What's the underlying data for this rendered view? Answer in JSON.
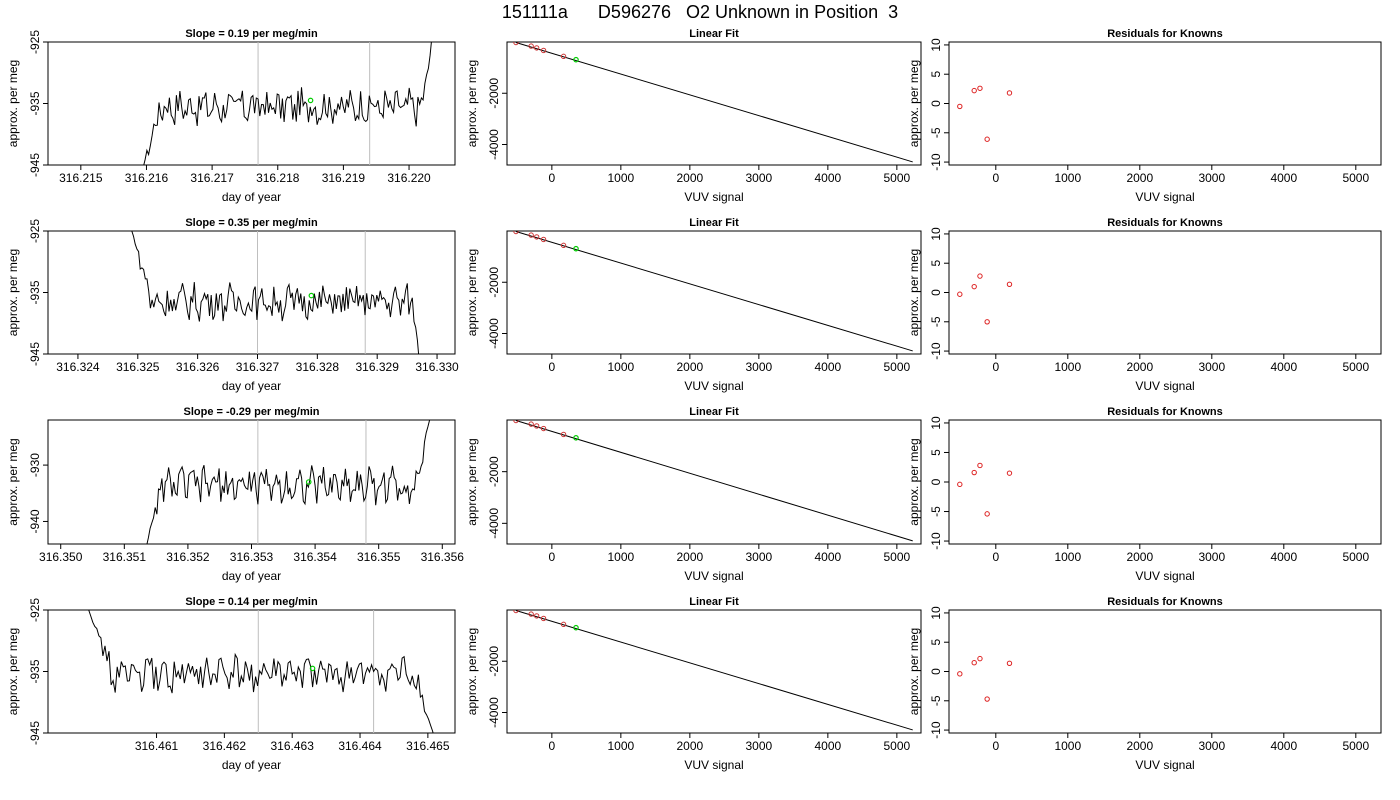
{
  "figure": {
    "title": "151111a      D596276   O2 Unknown in Position  3"
  },
  "colors": {
    "trace": "#000000",
    "marker_vline": "#bebebe",
    "unknown_point": "#00cc00",
    "known_point_fit": "#cc3333",
    "residual_point": "#dd2222",
    "fit_line": "#000000"
  },
  "chart_data": [
    {
      "type": "line",
      "panel": "time-series",
      "row": 1,
      "title": "Slope =  0.19  per meg/min",
      "xlabel": "day of year",
      "ylabel": "approx. per meg",
      "xlim": [
        316.2145,
        316.2207
      ],
      "ylim": [
        -945,
        -925
      ],
      "x_ticks": [
        "316.215",
        "316.216",
        "316.217",
        "316.218",
        "316.219",
        "316.220"
      ],
      "y_ticks": [
        "-945",
        "-935",
        "-925"
      ],
      "trace_start": 316.2159,
      "trace_end": 316.2204,
      "trace_level": -935.5,
      "rise_start": 316.2161,
      "fall_start": 316.2202,
      "fall_to": -921,
      "marker_lines": [
        316.2177,
        316.2194
      ],
      "unknown_point": {
        "x": 316.2185,
        "y": -934.5
      }
    },
    {
      "type": "scatter",
      "panel": "linear-fit",
      "row": 1,
      "title": "Linear Fit",
      "xlabel": "VUV signal",
      "ylabel": "approx. per meg",
      "xlim": [
        -650,
        5350
      ],
      "ylim": [
        -4800,
        0
      ],
      "x_ticks": [
        "0",
        "1000",
        "2000",
        "3000",
        "4000",
        "5000"
      ],
      "y_ticks": [
        "-2000",
        "-4000"
      ],
      "known_points": [
        [
          -520,
          -20
        ],
        [
          -300,
          -160
        ],
        [
          -220,
          -230
        ],
        [
          -120,
          -330
        ],
        [
          170,
          -560
        ]
      ],
      "unknown_point": [
        350,
        -690
      ],
      "fit_line": {
        "x0": -520,
        "y0": -20,
        "x1": 5230,
        "y1": -4680
      }
    },
    {
      "type": "scatter",
      "panel": "residuals",
      "row": 1,
      "title": "Residuals for Knowns",
      "xlabel": "VUV signal",
      "ylabel": "approx. per meg",
      "xlim": [
        -650,
        5350
      ],
      "ylim": [
        -10.5,
        10.5
      ],
      "x_ticks": [
        "0",
        "1000",
        "2000",
        "3000",
        "4000",
        "5000"
      ],
      "y_ticks": [
        "-10",
        "-5",
        "0",
        "5",
        "10"
      ],
      "points": [
        [
          -500,
          -0.5
        ],
        [
          -300,
          2.2
        ],
        [
          -220,
          2.6
        ],
        [
          -120,
          -6.1
        ],
        [
          190,
          1.8
        ]
      ]
    },
    {
      "type": "line",
      "panel": "time-series",
      "row": 2,
      "title": "Slope =  0.35  per meg/min",
      "xlabel": "day of year",
      "ylabel": "approx. per meg",
      "xlim": [
        316.3235,
        316.3303
      ],
      "ylim": [
        -945,
        -925
      ],
      "x_ticks": [
        "316.324",
        "316.325",
        "316.326",
        "316.327",
        "316.328",
        "316.329",
        "316.330"
      ],
      "y_ticks": [
        "-945",
        "-935",
        "-925"
      ],
      "trace_start": 316.3249,
      "trace_end": 316.3297,
      "trace_level": -936.5,
      "rise_start": 316.325,
      "rise_from": -925,
      "fall_start": 316.3296,
      "fall_to": -946,
      "marker_lines": [
        316.327,
        316.3288
      ],
      "unknown_point": {
        "x": 316.3279,
        "y": -935.5
      }
    },
    {
      "type": "scatter",
      "panel": "linear-fit",
      "row": 2,
      "title": "Linear Fit",
      "xlabel": "VUV signal",
      "ylabel": "approx. per meg",
      "xlim": [
        -650,
        5350
      ],
      "ylim": [
        -4800,
        0
      ],
      "x_ticks": [
        "0",
        "1000",
        "2000",
        "3000",
        "4000",
        "5000"
      ],
      "y_ticks": [
        "-2000",
        "-4000"
      ],
      "known_points": [
        [
          -520,
          -20
        ],
        [
          -300,
          -160
        ],
        [
          -220,
          -230
        ],
        [
          -120,
          -330
        ],
        [
          170,
          -560
        ]
      ],
      "unknown_point": [
        350,
        -690
      ],
      "fit_line": {
        "x0": -520,
        "y0": -20,
        "x1": 5230,
        "y1": -4680
      }
    },
    {
      "type": "scatter",
      "panel": "residuals",
      "row": 2,
      "title": "Residuals for Knowns",
      "xlabel": "VUV signal",
      "ylabel": "approx. per meg",
      "xlim": [
        -650,
        5350
      ],
      "ylim": [
        -10.5,
        10.5
      ],
      "x_ticks": [
        "0",
        "1000",
        "2000",
        "3000",
        "4000",
        "5000"
      ],
      "y_ticks": [
        "-10",
        "-5",
        "0",
        "5",
        "10"
      ],
      "points": [
        [
          -500,
          -0.3
        ],
        [
          -300,
          1.0
        ],
        [
          -220,
          2.8
        ],
        [
          -120,
          -5.0
        ],
        [
          190,
          1.4
        ]
      ]
    },
    {
      "type": "line",
      "panel": "time-series",
      "row": 3,
      "title": "Slope =  -0.29  per meg/min",
      "xlabel": "day of year",
      "ylabel": "approx. per meg",
      "xlim": [
        316.3498,
        316.3562
      ],
      "ylim": [
        -944,
        -922
      ],
      "x_ticks": [
        "316.350",
        "316.351",
        "316.352",
        "316.353",
        "316.354",
        "316.355",
        "316.356"
      ],
      "y_ticks": [
        "-940",
        "-930"
      ],
      "trace_start": 316.3513,
      "trace_end": 316.3558,
      "trace_level": -933.5,
      "rise_start": 316.3514,
      "fall_start": 316.3556,
      "fall_to": -922,
      "marker_lines": [
        316.3531,
        316.3548
      ],
      "unknown_point": {
        "x": 316.3539,
        "y": -933
      }
    },
    {
      "type": "scatter",
      "panel": "linear-fit",
      "row": 3,
      "title": "Linear Fit",
      "xlabel": "VUV signal",
      "ylabel": "approx. per meg",
      "xlim": [
        -650,
        5350
      ],
      "ylim": [
        -4800,
        0
      ],
      "x_ticks": [
        "0",
        "1000",
        "2000",
        "3000",
        "4000",
        "5000"
      ],
      "y_ticks": [
        "-2000",
        "-4000"
      ],
      "known_points": [
        [
          -520,
          -20
        ],
        [
          -300,
          -160
        ],
        [
          -220,
          -230
        ],
        [
          -120,
          -330
        ],
        [
          170,
          -560
        ]
      ],
      "unknown_point": [
        350,
        -690
      ],
      "fit_line": {
        "x0": -520,
        "y0": -20,
        "x1": 5230,
        "y1": -4680
      }
    },
    {
      "type": "scatter",
      "panel": "residuals",
      "row": 3,
      "title": "Residuals for Knowns",
      "xlabel": "VUV signal",
      "ylabel": "approx. per meg",
      "xlim": [
        -650,
        5350
      ],
      "ylim": [
        -10.5,
        10.5
      ],
      "x_ticks": [
        "0",
        "1000",
        "2000",
        "3000",
        "4000",
        "5000"
      ],
      "y_ticks": [
        "-10",
        "-5",
        "0",
        "5",
        "10"
      ],
      "points": [
        [
          -500,
          -0.4
        ],
        [
          -300,
          1.6
        ],
        [
          -220,
          2.8
        ],
        [
          -120,
          -5.4
        ],
        [
          190,
          1.5
        ]
      ]
    },
    {
      "type": "line",
      "panel": "time-series",
      "row": 4,
      "title": "Slope =  0.14  per meg/min",
      "xlabel": "day of year",
      "ylabel": "approx. per meg",
      "xlim": [
        316.4594,
        316.4654
      ],
      "ylim": [
        -945,
        -925
      ],
      "x_ticks": [
        "316.461",
        "316.462",
        "316.463",
        "316.464",
        "316.465"
      ],
      "y_ticks": [
        "-945",
        "-935",
        "-925"
      ],
      "trace_start": 316.46,
      "trace_end": 316.4651,
      "trace_level": -935.5,
      "rise_start": 316.4601,
      "rise_from": -925,
      "fall_start": 316.4648,
      "fall_to": -946,
      "marker_lines": [
        316.4625,
        316.4642
      ],
      "unknown_point": {
        "x": 316.4633,
        "y": -934.5
      }
    },
    {
      "type": "scatter",
      "panel": "linear-fit",
      "row": 4,
      "title": "Linear Fit",
      "xlabel": "VUV signal",
      "ylabel": "approx. per meg",
      "xlim": [
        -650,
        5350
      ],
      "ylim": [
        -4800,
        0
      ],
      "x_ticks": [
        "0",
        "1000",
        "2000",
        "3000",
        "4000",
        "5000"
      ],
      "y_ticks": [
        "-2000",
        "-4000"
      ],
      "known_points": [
        [
          -520,
          -20
        ],
        [
          -300,
          -160
        ],
        [
          -220,
          -230
        ],
        [
          -120,
          -330
        ],
        [
          170,
          -560
        ]
      ],
      "unknown_point": [
        350,
        -690
      ],
      "fit_line": {
        "x0": -520,
        "y0": -20,
        "x1": 5230,
        "y1": -4680
      }
    },
    {
      "type": "scatter",
      "panel": "residuals",
      "row": 4,
      "title": "Residuals for Knowns",
      "xlabel": "VUV signal",
      "ylabel": "approx. per meg",
      "xlim": [
        -650,
        5350
      ],
      "ylim": [
        -10.5,
        10.5
      ],
      "x_ticks": [
        "0",
        "1000",
        "2000",
        "3000",
        "4000",
        "5000"
      ],
      "y_ticks": [
        "-10",
        "-5",
        "0",
        "5",
        "10"
      ],
      "points": [
        [
          -500,
          -0.4
        ],
        [
          -300,
          1.5
        ],
        [
          -220,
          2.2
        ],
        [
          -120,
          -4.7
        ],
        [
          190,
          1.4
        ]
      ]
    }
  ]
}
